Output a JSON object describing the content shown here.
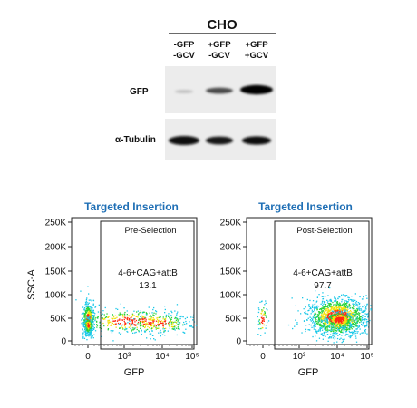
{
  "blot": {
    "cell_line": "CHO",
    "lanes": [
      {
        "top": "-GFP",
        "bottom": "-GCV"
      },
      {
        "top": "+GFP",
        "bottom": "-GCV"
      },
      {
        "top": "+GFP",
        "bottom": "+GCV"
      }
    ],
    "rows": [
      "GFP",
      "α-Tubulin"
    ]
  },
  "chart_data": [
    {
      "type": "scatter",
      "title": "Targeted Insertion",
      "gate_label": "Pre-Selection",
      "population_label": "4-6+CAG+attB",
      "population_value": "13.1",
      "xlabel": "GFP",
      "ylabel": "SSC-A",
      "x_ticks": [
        "0",
        "10³",
        "10⁴",
        "10⁵"
      ],
      "y_ticks": [
        "0",
        "50K",
        "100K",
        "150K",
        "200K",
        "250K"
      ],
      "ylim": [
        0,
        262144
      ],
      "x_scale": "biexponential"
    },
    {
      "type": "scatter",
      "title": "Targeted Insertion",
      "gate_label": "Post-Selection",
      "population_label": "4-6+CAG+attB",
      "population_value": "97.7",
      "xlabel": "GFP",
      "ylabel": "",
      "x_ticks": [
        "0",
        "10³",
        "10⁴",
        "10⁵"
      ],
      "y_ticks": [
        "0",
        "50K",
        "100K",
        "150K",
        "200K",
        "250K"
      ],
      "ylim": [
        0,
        262144
      ],
      "x_scale": "biexponential"
    }
  ]
}
